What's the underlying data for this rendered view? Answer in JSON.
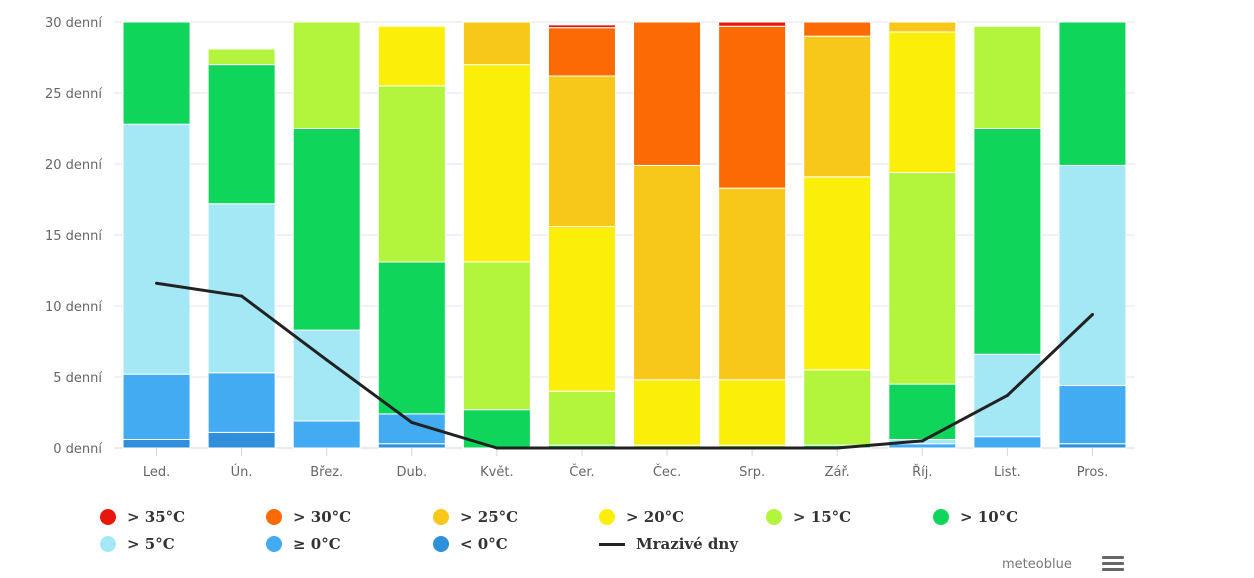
{
  "chart_data": {
    "type": "bar",
    "stacked": true,
    "ylim": [
      0,
      30
    ],
    "y_ticks": [
      "0 denní",
      "5 denní",
      "10 denní",
      "15 denní",
      "20 denní",
      "25 denní",
      "30 denní"
    ],
    "y_tick_values": [
      0,
      5,
      10,
      15,
      20,
      25,
      30
    ],
    "categories": [
      "Led.",
      "Ún.",
      "Břez.",
      "Dub.",
      "Květ.",
      "Čer.",
      "Čec.",
      "Srp.",
      "Zář.",
      "Říj.",
      "List.",
      "Pros."
    ],
    "series": [
      {
        "name": "< 0°C",
        "color": "#2f8fdb",
        "values": [
          0.6,
          1.1,
          0,
          0.3,
          0,
          0,
          0,
          0,
          0,
          0,
          0,
          0.3
        ]
      },
      {
        "name": "≥ 0°C",
        "color": "#42abf1",
        "values": [
          4.6,
          4.2,
          1.9,
          2.1,
          0,
          0,
          0,
          0,
          0,
          0.3,
          0.8,
          4.1
        ]
      },
      {
        "name": "> 5°C",
        "color": "#a4e7f5",
        "values": [
          17.6,
          11.9,
          6.4,
          0,
          0,
          0,
          0,
          0,
          0,
          0.3,
          5.8,
          15.5
        ]
      },
      {
        "name": "> 10°C",
        "color": "#0fd65a",
        "values": [
          7.2,
          9.8,
          14.2,
          10.7,
          2.7,
          0.2,
          0,
          0,
          0.2,
          3.9,
          15.9,
          10.1
        ]
      },
      {
        "name": "> 15°C",
        "color": "#b3f43c",
        "values": [
          0,
          1.1,
          7.5,
          12.4,
          10.4,
          3.8,
          0.2,
          0.2,
          5.3,
          14.9,
          7.2,
          0
        ]
      },
      {
        "name": "> 20°C",
        "color": "#fbef0a",
        "values": [
          0,
          0,
          0,
          4.2,
          13.9,
          11.6,
          4.6,
          4.6,
          13.6,
          9.9,
          0,
          0
        ]
      },
      {
        "name": "> 25°C",
        "color": "#f7c719",
        "values": [
          0,
          0,
          0,
          0,
          3.0,
          10.6,
          15.1,
          13.5,
          9.9,
          0.7,
          0,
          0
        ]
      },
      {
        "name": "> 30°C",
        "color": "#fc6a06",
        "values": [
          0,
          0,
          0,
          0,
          0,
          3.4,
          10.1,
          11.4,
          1.0,
          0,
          0,
          0
        ]
      },
      {
        "name": "> 35°C",
        "color": "#e8170d",
        "values": [
          0,
          0,
          0,
          0,
          0,
          0.2,
          0,
          0.3,
          0,
          0,
          0,
          0
        ]
      }
    ],
    "line": {
      "name": "Mrazivé dny",
      "color": "#222222",
      "values": [
        11.6,
        10.7,
        6.2,
        1.8,
        0,
        0,
        0,
        0,
        0,
        0.5,
        3.7,
        9.4
      ]
    },
    "legend_position": "bottom",
    "grid": true
  },
  "legend": [
    {
      "label": "> 35°C",
      "color": "#e8170d",
      "kind": "dot"
    },
    {
      "label": "> 30°C",
      "color": "#fc6a06",
      "kind": "dot"
    },
    {
      "label": "> 25°C",
      "color": "#f7c719",
      "kind": "dot"
    },
    {
      "label": "> 20°C",
      "color": "#fbef0a",
      "kind": "dot"
    },
    {
      "label": "> 15°C",
      "color": "#b3f43c",
      "kind": "dot"
    },
    {
      "label": "> 10°C",
      "color": "#0fd65a",
      "kind": "dot"
    },
    {
      "label": "> 5°C",
      "color": "#a4e7f5",
      "kind": "dot"
    },
    {
      "label": "≥ 0°C",
      "color": "#42abf1",
      "kind": "dot"
    },
    {
      "label": "< 0°C",
      "color": "#2f8fdb",
      "kind": "dot"
    },
    {
      "label": "Mrazivé dny",
      "color": "#222222",
      "kind": "line"
    }
  ],
  "credit": "meteoblue",
  "menu_icon": "hamburger-menu-icon"
}
